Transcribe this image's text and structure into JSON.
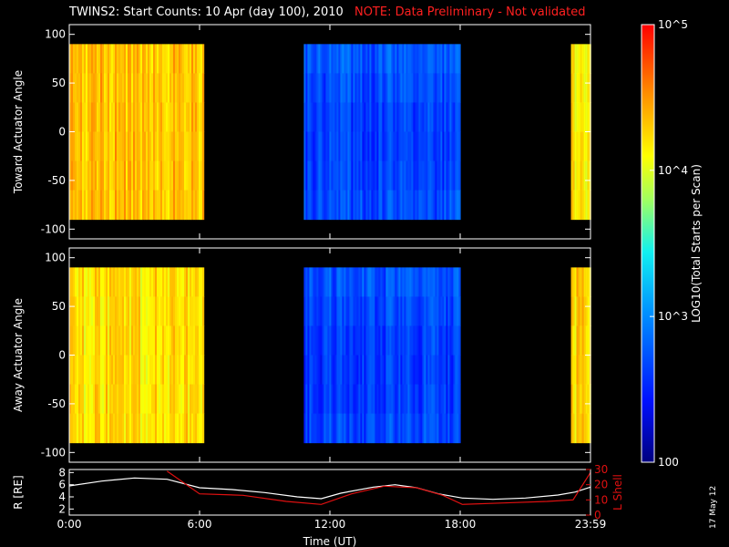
{
  "title": {
    "main": "TWINS2: Start Counts: 10 Apr (day 100), 2010",
    "note": "NOTE: Data Preliminary - Not validated"
  },
  "date_stamp": "17 May 12",
  "colors": {
    "background": "#000000",
    "axes": "#ffffff",
    "note": "#ff2020",
    "r_line": "#ffffff",
    "lshell_line": "#e01010"
  },
  "chart_data": [
    {
      "type": "heatmap",
      "panel": "top",
      "ylabel": "Toward Actuator Angle",
      "ylim": [
        -110,
        110
      ],
      "y_ticks": [
        100,
        50,
        0,
        -50,
        -100
      ],
      "y_tick_labels": [
        "100",
        "50",
        "0",
        "-50",
        "-100"
      ],
      "x_ticks_hours": [
        0,
        6,
        12,
        18,
        24
      ],
      "angle_range": [
        -90,
        90
      ],
      "segments": [
        {
          "start_h": 0.0,
          "end_h": 6.2,
          "level": 0.78
        },
        {
          "start_h": 10.8,
          "end_h": 18.0,
          "level": 0.25
        },
        {
          "start_h": 23.1,
          "end_h": 24.0,
          "level": 0.72
        }
      ]
    },
    {
      "type": "heatmap",
      "panel": "middle",
      "ylabel": "Away Actuator Angle",
      "ylim": [
        -110,
        110
      ],
      "y_ticks": [
        100,
        50,
        0,
        -50,
        -100
      ],
      "y_tick_labels": [
        "100",
        "50",
        "0",
        "-50",
        "-100"
      ],
      "x_ticks_hours": [
        0,
        6,
        12,
        18,
        24
      ],
      "angle_range": [
        -90,
        90
      ],
      "segments": [
        {
          "start_h": 0.0,
          "end_h": 6.2,
          "level": 0.74
        },
        {
          "start_h": 10.8,
          "end_h": 18.0,
          "level": 0.24
        },
        {
          "start_h": 23.1,
          "end_h": 24.0,
          "level": 0.75
        }
      ]
    },
    {
      "type": "line",
      "panel": "bottom",
      "ylabel": "R [RE]",
      "ylabel_right": "L Shell",
      "xlabel": "Time (UT)",
      "x_tick_labels": [
        "0:00",
        "6:00",
        "12:00",
        "18:00",
        "23:59"
      ],
      "x_ticks_hours": [
        0,
        6,
        12,
        18,
        24
      ],
      "ylim": [
        1,
        8.5
      ],
      "y_ticks": [
        2,
        4,
        6,
        8
      ],
      "y_tick_labels": [
        "2",
        "4",
        "6",
        "8"
      ],
      "ylim_right": [
        0,
        30
      ],
      "y_ticks_right": [
        0,
        10,
        20,
        30
      ],
      "y_tick_labels_right": [
        "0",
        "10",
        "20",
        "30"
      ],
      "series": [
        {
          "axis": "left",
          "x_hours": [
            0,
            1.5,
            3,
            4.5,
            6.0,
            7.5,
            9,
            10.5,
            11.6,
            12.5,
            14,
            15,
            16,
            17,
            18.1,
            19.5,
            21,
            22.5,
            23.3,
            24
          ],
          "values": [
            5.8,
            6.6,
            7.1,
            6.9,
            5.5,
            5.2,
            4.7,
            4.0,
            3.7,
            4.6,
            5.6,
            6.0,
            5.5,
            4.5,
            3.8,
            3.6,
            3.8,
            4.3,
            4.8,
            5.6
          ]
        },
        {
          "axis": "right",
          "x_hours": [
            4.5,
            6.0,
            8,
            10,
            11.6,
            13,
            14.5,
            16,
            17.2,
            18.1,
            20,
            22,
            23.2,
            24
          ],
          "values": [
            29,
            14,
            13,
            9,
            7,
            14,
            19,
            18,
            13,
            7,
            8,
            9,
            10,
            28
          ]
        }
      ]
    },
    {
      "type": "colorbar",
      "label": "LOG10(Total Starts per Scan)",
      "tick_labels": [
        "10^5",
        "10^4",
        "10^3",
        "100"
      ],
      "tick_levels": [
        1.0,
        0.667,
        0.333,
        0.0
      ]
    }
  ]
}
